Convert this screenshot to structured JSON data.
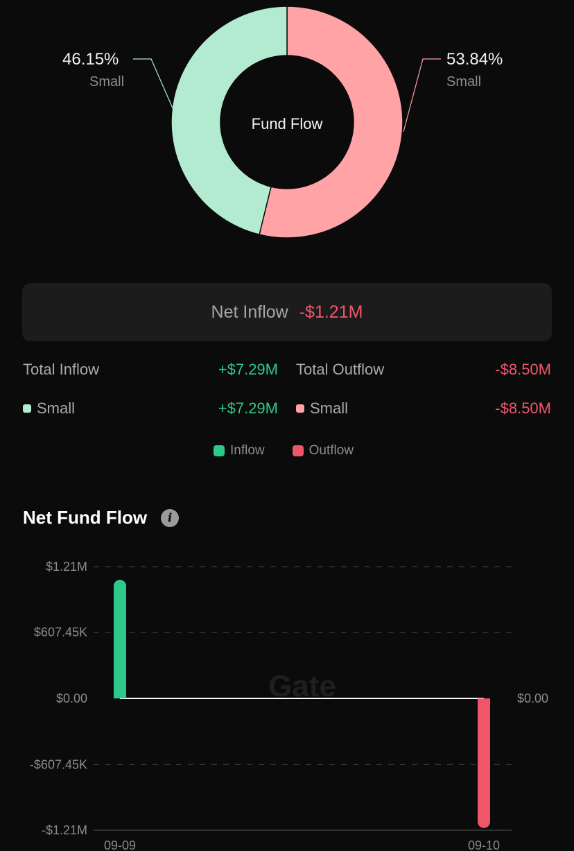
{
  "donut": {
    "center_label": "Fund Flow",
    "slices": [
      {
        "label": "Small",
        "percent_text": "46.15%",
        "value": 46.15,
        "color": "#b3ebd1"
      },
      {
        "label": "Small",
        "percent_text": "53.84%",
        "value": 53.84,
        "color": "#ffa3a6"
      }
    ]
  },
  "net_inflow": {
    "label": "Net Inflow",
    "value": "-$1.21M"
  },
  "totals": {
    "inflow_label": "Total Inflow",
    "inflow_value": "+$7.29M",
    "outflow_label": "Total Outflow",
    "outflow_value": "-$8.50M",
    "inflow_small_label": "Small",
    "inflow_small_value": "+$7.29M",
    "outflow_small_label": "Small",
    "outflow_small_value": "-$8.50M"
  },
  "legend": {
    "inflow": "Inflow",
    "outflow": "Outflow"
  },
  "colors": {
    "inflow": "#2ec98a",
    "outflow": "#f0566a",
    "inflow_light": "#b3ebd1",
    "outflow_light": "#ffa3a6"
  },
  "section": {
    "title": "Net Fund Flow",
    "info_icon": "info-icon"
  },
  "watermark": "Gate",
  "chart_data": {
    "type": "bar",
    "title": "Net Fund Flow",
    "categories": [
      "09-09",
      "09-10"
    ],
    "values": [
      1.09,
      -1.19
    ],
    "unit": "M",
    "y_ticks": [
      "$1.21M",
      "$607.45K",
      "$0.00",
      "-$607.45K",
      "-$1.21M"
    ],
    "y_tick_values": [
      1.21,
      0.60745,
      0,
      -0.60745,
      -1.21
    ],
    "right_tick": "$0.00",
    "ylim": [
      -1.21,
      1.21
    ],
    "grid": true
  }
}
